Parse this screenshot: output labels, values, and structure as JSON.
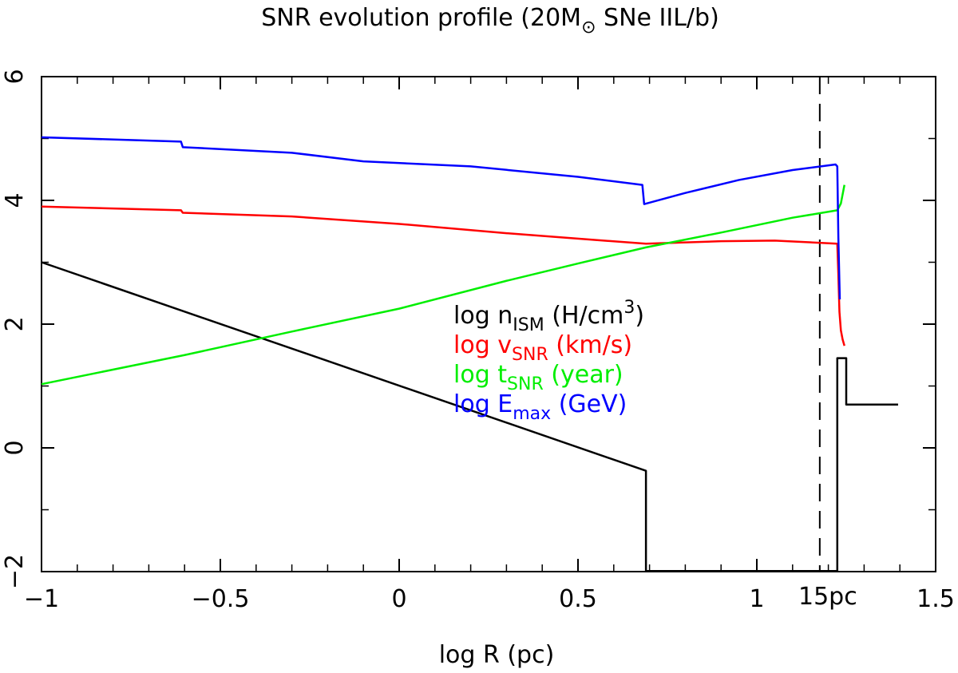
{
  "chart_data": {
    "type": "line",
    "title": "SNR evolution profile (20M",
    "title_sub": "⊙",
    "title_tail": " SNe IIL/b)",
    "xlabel": "log R (pc)",
    "ylabel": "",
    "xlim": [
      -1,
      1.5
    ],
    "ylim": [
      -2,
      6
    ],
    "x_ticks": [
      {
        "v": -1,
        "label": "−1"
      },
      {
        "v": -0.5,
        "label": "−0.5"
      },
      {
        "v": 0,
        "label": "0"
      },
      {
        "v": 0.5,
        "label": "0.5"
      },
      {
        "v": 1,
        "label": "1"
      },
      {
        "v": 1.5,
        "label": "1.5"
      }
    ],
    "y_ticks": [
      {
        "v": -2,
        "label": "−2"
      },
      {
        "v": 0,
        "label": "0"
      },
      {
        "v": 2,
        "label": "2"
      },
      {
        "v": 4,
        "label": "4"
      },
      {
        "v": 6,
        "label": "6"
      }
    ],
    "vline": {
      "x": 1.176,
      "label": "15pc",
      "style": "dashed"
    },
    "grid": false,
    "legend_position": "center",
    "series": [
      {
        "name": "log n_ISM (H/cm^3)",
        "legend": {
          "pre": "log n",
          "sub": "ISM",
          "mid": " (H/cm",
          "sup": "3",
          "post": ")"
        },
        "color": "#000000",
        "points": [
          [
            -1,
            3.0
          ],
          [
            0.69,
            -0.37
          ],
          [
            0.69,
            -1.99
          ],
          [
            1.225,
            -1.99
          ],
          [
            1.225,
            1.45
          ],
          [
            1.25,
            1.45
          ],
          [
            1.25,
            0.7
          ],
          [
            1.395,
            0.7
          ]
        ]
      },
      {
        "name": "log v_SNR (km/s)",
        "legend": {
          "pre": "log v",
          "sub": "SNR",
          "mid": " (km/s)",
          "sup": "",
          "post": ""
        },
        "color": "#ff0000",
        "points": [
          [
            -1,
            3.9
          ],
          [
            -0.61,
            3.84
          ],
          [
            -0.605,
            3.8
          ],
          [
            -0.3,
            3.74
          ],
          [
            0,
            3.62
          ],
          [
            0.3,
            3.47
          ],
          [
            0.55,
            3.36
          ],
          [
            0.69,
            3.3
          ],
          [
            0.9,
            3.34
          ],
          [
            1.05,
            3.35
          ],
          [
            1.225,
            3.3
          ],
          [
            1.228,
            2.8
          ],
          [
            1.231,
            2.2
          ],
          [
            1.235,
            1.9
          ],
          [
            1.24,
            1.75
          ],
          [
            1.245,
            1.65
          ]
        ]
      },
      {
        "name": "log t_SNR (year)",
        "legend": {
          "pre": "log t",
          "sub": "SNR",
          "mid": " (year)",
          "sup": "",
          "post": ""
        },
        "color": "#00ee00",
        "points": [
          [
            -1,
            1.03
          ],
          [
            -0.6,
            1.5
          ],
          [
            -0.3,
            1.88
          ],
          [
            0,
            2.25
          ],
          [
            0.3,
            2.7
          ],
          [
            0.5,
            2.98
          ],
          [
            0.69,
            3.24
          ],
          [
            0.9,
            3.48
          ],
          [
            1.1,
            3.72
          ],
          [
            1.225,
            3.84
          ],
          [
            1.235,
            3.95
          ],
          [
            1.245,
            4.25
          ]
        ]
      },
      {
        "name": "log E_max (GeV)",
        "legend": {
          "pre": "log E",
          "sub": "max",
          "mid": " (GeV)",
          "sup": "",
          "post": ""
        },
        "color": "#0000ff",
        "points": [
          [
            -1,
            5.02
          ],
          [
            -0.61,
            4.95
          ],
          [
            -0.605,
            4.86
          ],
          [
            -0.3,
            4.77
          ],
          [
            -0.1,
            4.63
          ],
          [
            0.2,
            4.55
          ],
          [
            0.5,
            4.38
          ],
          [
            0.68,
            4.25
          ],
          [
            0.685,
            3.94
          ],
          [
            0.8,
            4.12
          ],
          [
            0.95,
            4.33
          ],
          [
            1.1,
            4.49
          ],
          [
            1.22,
            4.58
          ],
          [
            1.225,
            4.55
          ],
          [
            1.228,
            3.4
          ],
          [
            1.232,
            2.4
          ]
        ]
      }
    ]
  }
}
